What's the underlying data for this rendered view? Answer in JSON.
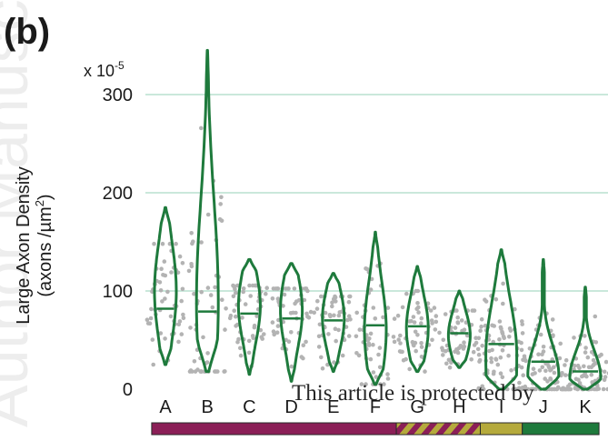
{
  "panel_label": "(b)",
  "watermark_text": "This article is protected by",
  "background_watermark": "Author Manuscript",
  "colors": {
    "violin": "#1e7a3c",
    "grid": "#b8e0cf",
    "points": "#b3b3b3",
    "bar_magenta": "#8b1f57",
    "bar_olive": "#b5aa3c",
    "bar_green": "#1e7a3c"
  },
  "chart_data": {
    "type": "violin",
    "title": "",
    "ylabel_line1": "Large Axon Density",
    "ylabel_line2": "(axons /µm",
    "ylabel_sup": "2",
    "ylabel_end": ")",
    "scale_note": "x 10",
    "scale_exp": "-5",
    "ylim": [
      0,
      340
    ],
    "yticks": [
      0,
      100,
      200,
      300
    ],
    "grid": true,
    "categories": [
      "A",
      "B",
      "C",
      "D",
      "E",
      "F",
      "G",
      "H",
      "I",
      "J",
      "K"
    ],
    "series": [
      {
        "min": 25,
        "max": 185,
        "median": 82,
        "peak": 100
      },
      {
        "min": 18,
        "max": 345,
        "median": 79,
        "peak": 90
      },
      {
        "min": 15,
        "max": 132,
        "median": 77,
        "peak": 85
      },
      {
        "min": 8,
        "max": 128,
        "median": 72,
        "peak": 80
      },
      {
        "min": 18,
        "max": 118,
        "median": 70,
        "peak": 72
      },
      {
        "min": 5,
        "max": 160,
        "median": 65,
        "peak": 60
      },
      {
        "min": 18,
        "max": 125,
        "median": 64,
        "peak": 62
      },
      {
        "min": 22,
        "max": 100,
        "median": 57,
        "peak": 55
      },
      {
        "min": 0,
        "max": 142,
        "median": 46,
        "peak": 35
      },
      {
        "min": 0,
        "max": 132,
        "median": 28,
        "peak": 15
      },
      {
        "min": 0,
        "max": 104,
        "median": 18,
        "peak": 12
      }
    ],
    "group_bar": [
      {
        "from": "A",
        "to": "F",
        "style": "solid",
        "color": "bar_magenta"
      },
      {
        "from": "G",
        "to": "H",
        "style": "hatched",
        "color": "bar_magenta"
      },
      {
        "from": "I",
        "to": "I",
        "style": "solid",
        "color": "bar_olive"
      },
      {
        "from": "J",
        "to": "K",
        "style": "solid",
        "color": "bar_green"
      }
    ]
  }
}
